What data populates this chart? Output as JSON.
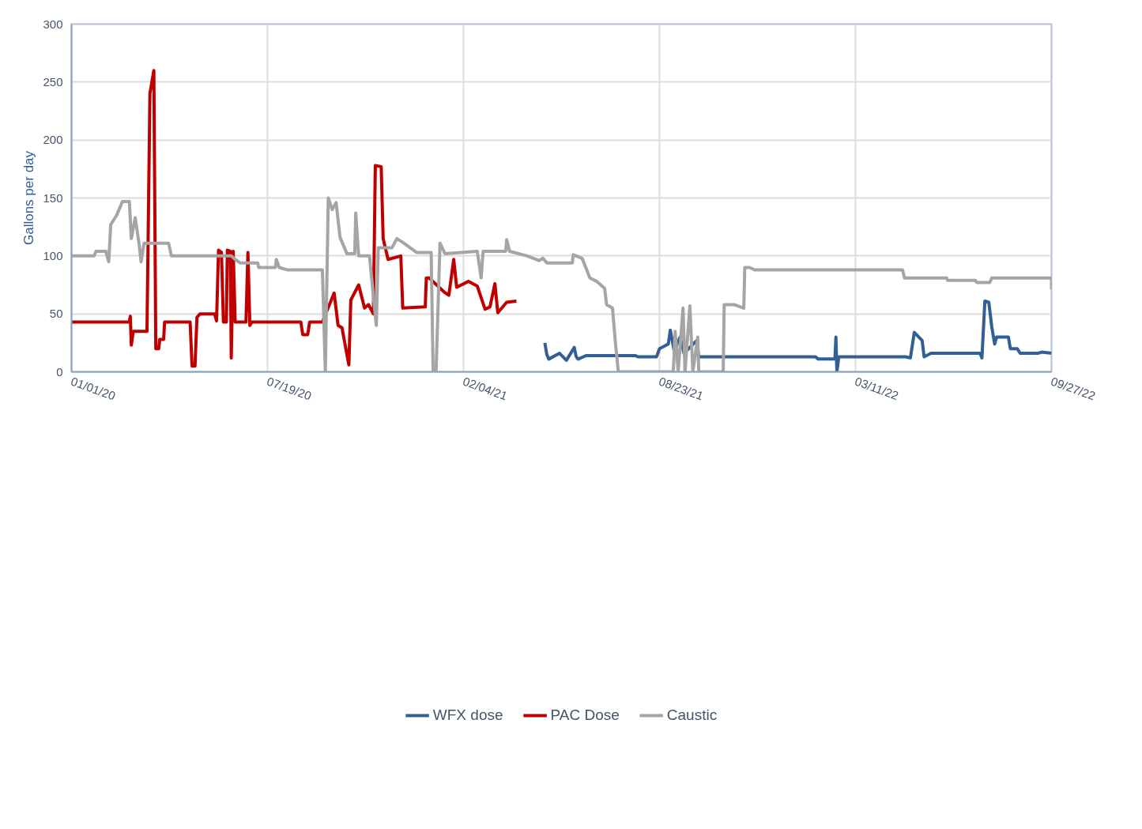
{
  "chart_data": {
    "type": "line",
    "ylabel": "Gallons per day",
    "xlim": [
      "2020-01-01",
      "2022-09-27"
    ],
    "xticks": [
      {
        "value": "2020-01-01",
        "label": "01/01/20"
      },
      {
        "value": "2020-07-19",
        "label": "07/19/20"
      },
      {
        "value": "2021-02-04",
        "label": "02/04/21"
      },
      {
        "value": "2021-08-23",
        "label": "08/23/21"
      },
      {
        "value": "2022-03-11",
        "label": "03/11/22"
      },
      {
        "value": "2022-09-27",
        "label": "09/27/22"
      }
    ],
    "ylim": [
      0,
      300
    ],
    "yticks": [
      0,
      50,
      100,
      150,
      200,
      250,
      300
    ],
    "grid": true,
    "legend": "bottom",
    "series": [
      {
        "name": "WFX dose",
        "color": "#335f96",
        "x": [
          "2021-04-28",
          "2021-04-30",
          "2021-05-02",
          "2021-05-13",
          "2021-05-20",
          "2021-05-28",
          "2021-05-30",
          "2021-06-01",
          "2021-06-09",
          "2021-07-29",
          "2021-08-01",
          "2021-08-20",
          "2021-08-23",
          "2021-09-01",
          "2021-09-03",
          "2021-09-07",
          "2021-09-13",
          "2021-09-17",
          "2021-09-30",
          "2021-10-02",
          "2022-01-29",
          "2022-02-01",
          "2022-02-18",
          "2022-02-19",
          "2022-02-20",
          "2022-02-22",
          "2022-05-01",
          "2022-05-06",
          "2022-05-10",
          "2022-05-18",
          "2022-05-20",
          "2022-05-27",
          "2022-07-16",
          "2022-07-18",
          "2022-07-21",
          "2022-07-25",
          "2022-07-28",
          "2022-07-31",
          "2022-08-02",
          "2022-08-14",
          "2022-08-16",
          "2022-08-23",
          "2022-08-26",
          "2022-09-13",
          "2022-09-17",
          "2022-09-27"
        ],
        "values": [
          25,
          15,
          11,
          16,
          10,
          21,
          13,
          11,
          14,
          14,
          13,
          13,
          20,
          24,
          36,
          18,
          30,
          16,
          27,
          13,
          13,
          11,
          11,
          30,
          0,
          13,
          13,
          12,
          34,
          27,
          13,
          16,
          16,
          12,
          61,
          60,
          39,
          24,
          30,
          30,
          20,
          20,
          16,
          16,
          17,
          16
        ]
      },
      {
        "name": "PAC Dose",
        "color": "#c00000",
        "x": [
          "2020-01-01",
          "2020-02-29",
          "2020-03-01",
          "2020-03-02",
          "2020-03-04",
          "2020-03-18",
          "2020-03-21",
          "2020-03-25",
          "2020-03-27",
          "2020-03-30",
          "2020-03-31",
          "2020-04-04",
          "2020-04-05",
          "2020-05-01",
          "2020-05-03",
          "2020-05-06",
          "2020-05-08",
          "2020-05-11",
          "2020-05-26",
          "2020-05-28",
          "2020-05-30",
          "2020-06-02",
          "2020-06-04",
          "2020-06-07",
          "2020-06-08",
          "2020-06-11",
          "2020-06-12",
          "2020-06-14",
          "2020-06-16",
          "2020-06-27",
          "2020-06-29",
          "2020-07-01",
          "2020-07-03",
          "2020-08-22",
          "2020-08-24",
          "2020-08-29",
          "2020-08-31",
          "2020-09-13",
          "2020-09-25",
          "2020-09-29",
          "2020-10-03",
          "2020-10-10",
          "2020-10-12",
          "2020-10-20",
          "2020-10-26",
          "2020-10-30",
          "2020-11-04",
          "2020-11-06",
          "2020-11-12",
          "2020-11-14",
          "2020-11-19",
          "2020-12-02",
          "2020-12-04",
          "2020-12-27",
          "2020-12-28",
          "2020-12-31",
          "2021-01-15",
          "2021-01-20",
          "2021-01-25",
          "2021-01-28",
          "2021-02-09",
          "2021-02-18",
          "2021-02-26",
          "2021-03-03",
          "2021-03-08",
          "2021-03-11",
          "2021-03-20",
          "2021-03-30"
        ],
        "values": [
          43,
          43,
          48,
          23,
          35,
          35,
          240,
          260,
          20,
          20,
          28,
          28,
          43,
          43,
          5,
          5,
          47,
          50,
          50,
          44,
          105,
          103,
          43,
          43,
          105,
          104,
          12,
          104,
          43,
          43,
          103,
          40,
          43,
          43,
          32,
          32,
          43,
          43,
          68,
          40,
          38,
          6,
          62,
          75,
          55,
          58,
          50,
          178,
          177,
          115,
          97,
          100,
          55,
          56,
          81,
          81,
          69,
          66,
          97,
          73,
          78,
          74,
          54,
          56,
          76,
          51,
          60,
          61
        ]
      },
      {
        "name": "Caustic",
        "color": "#a5a5a5",
        "x": [
          "2020-01-01",
          "2020-01-24",
          "2020-01-26",
          "2020-02-05",
          "2020-02-08",
          "2020-02-10",
          "2020-02-16",
          "2020-02-22",
          "2020-02-29",
          "2020-03-02",
          "2020-03-06",
          "2020-03-10",
          "2020-03-12",
          "2020-03-15",
          "2020-04-09",
          "2020-04-12",
          "2020-06-12",
          "2020-06-16",
          "2020-06-21",
          "2020-07-09",
          "2020-07-10",
          "2020-07-27",
          "2020-07-28",
          "2020-07-31",
          "2020-08-08",
          "2020-09-13",
          "2020-09-16",
          "2020-09-19",
          "2020-09-23",
          "2020-09-27",
          "2020-10-01",
          "2020-10-08",
          "2020-10-16",
          "2020-10-17",
          "2020-10-20",
          "2020-10-31",
          "2020-11-07",
          "2020-11-09",
          "2020-11-23",
          "2020-11-28",
          "2020-12-05",
          "2020-12-18",
          "2021-01-02",
          "2021-01-04",
          "2021-01-07",
          "2021-01-11",
          "2021-01-16",
          "2021-02-18",
          "2021-02-22",
          "2021-02-24",
          "2021-03-19",
          "2021-03-20",
          "2021-03-23",
          "2021-04-10",
          "2021-04-22",
          "2021-04-26",
          "2021-04-30",
          "2021-05-26",
          "2021-05-27",
          "2021-06-05",
          "2021-06-13",
          "2021-06-20",
          "2021-06-28",
          "2021-06-30",
          "2021-07-06",
          "2021-07-09",
          "2021-07-12",
          "2021-09-06",
          "2021-09-08",
          "2021-09-11",
          "2021-09-16",
          "2021-09-18",
          "2021-09-23",
          "2021-09-26",
          "2021-10-01",
          "2021-10-02",
          "2021-10-27",
          "2021-10-28",
          "2021-11-07",
          "2021-11-17",
          "2021-11-18",
          "2021-11-23",
          "2021-11-28",
          "2022-04-28",
          "2022-04-30",
          "2022-06-12",
          "2022-06-13",
          "2022-07-11",
          "2022-07-13",
          "2022-07-26",
          "2022-07-28",
          "2022-09-27",
          "2022-09-27"
        ],
        "values": [
          100,
          100,
          104,
          104,
          95,
          127,
          135,
          147,
          147,
          115,
          133,
          110,
          95,
          111,
          111,
          100,
          100,
          97,
          94,
          94,
          90,
          90,
          97,
          90,
          88,
          88,
          0,
          150,
          140,
          146,
          116,
          102,
          102,
          137,
          100,
          100,
          40,
          107,
          107,
          115,
          111,
          103,
          103,
          0,
          0,
          111,
          102,
          104,
          81,
          104,
          104,
          114,
          104,
          100,
          96,
          98,
          94,
          94,
          101,
          98,
          81,
          78,
          72,
          58,
          55,
          25,
          0,
          0,
          35,
          0,
          55,
          0,
          57,
          0,
          30,
          0,
          0,
          58,
          58,
          55,
          90,
          90,
          88,
          88,
          81,
          81,
          79,
          79,
          77,
          77,
          81,
          81,
          71
        ]
      }
    ]
  }
}
